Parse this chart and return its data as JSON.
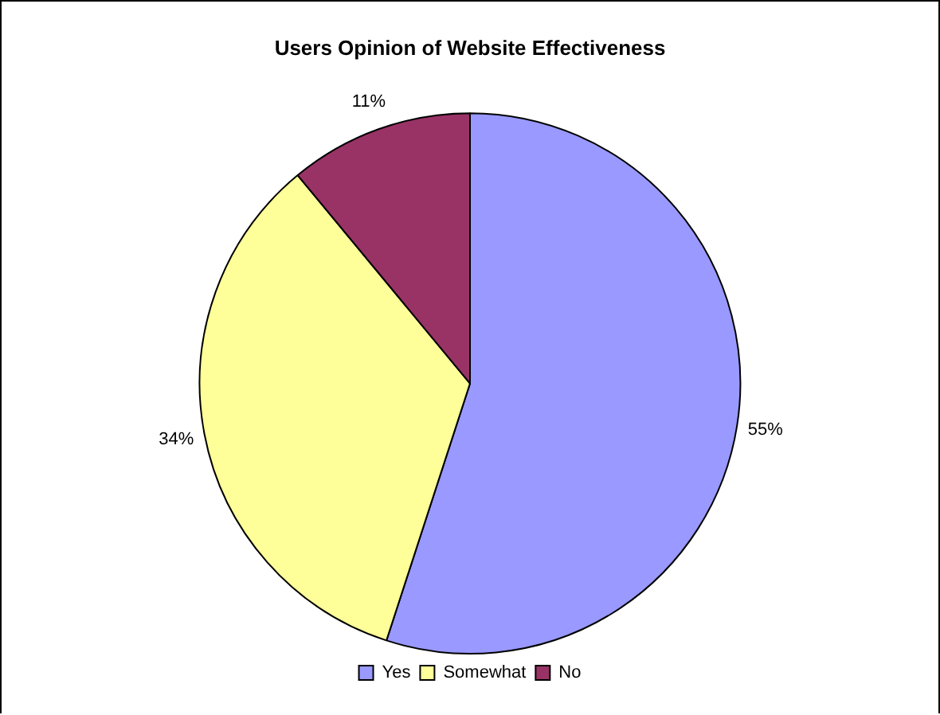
{
  "chart_data": {
    "type": "pie",
    "title": "Users Opinion of Website Effectiveness",
    "categories": [
      "Yes",
      "Somewhat",
      "No"
    ],
    "values": [
      55,
      34,
      11
    ],
    "value_labels": [
      "55%",
      "34%",
      "11%"
    ],
    "colors": [
      "#9999ff",
      "#ffff99",
      "#993366"
    ],
    "legend": "bottom"
  }
}
